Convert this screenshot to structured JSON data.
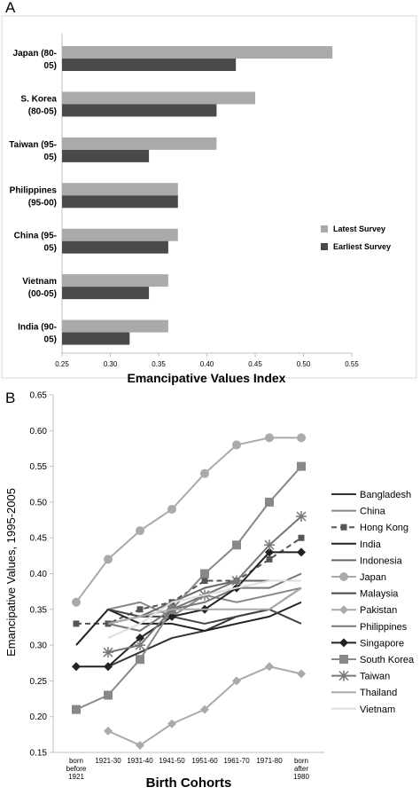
{
  "panels": {
    "a_label": "A",
    "b_label": "B"
  },
  "chart_data": [
    {
      "type": "bar",
      "orientation": "horizontal",
      "title": "",
      "xlabel": "Emancipative Values Index",
      "ylabel": "",
      "xlim": [
        0.25,
        0.55
      ],
      "xticks": [
        "0.25",
        "0.30",
        "0.35",
        "0.40",
        "0.45",
        "0.50",
        "0.55"
      ],
      "categories": [
        [
          "Japan (80-",
          "05)"
        ],
        [
          "S. Korea",
          "(80-05)"
        ],
        [
          "Taiwan (95-",
          "05)"
        ],
        [
          "Philippines",
          "(95-00)"
        ],
        [
          "China (95-",
          "05)"
        ],
        [
          "Vietnam",
          "(00-05)"
        ],
        [
          "India (90-",
          "05)"
        ]
      ],
      "series": [
        {
          "name": "Latest Survey",
          "color": "#aaaaaa",
          "values": [
            0.53,
            0.45,
            0.41,
            0.37,
            0.37,
            0.36,
            0.36
          ]
        },
        {
          "name": "Earliest Survey",
          "color": "#4a4a4a",
          "values": [
            0.43,
            0.41,
            0.34,
            0.37,
            0.36,
            0.34,
            0.32
          ]
        }
      ],
      "legend": "right",
      "grid": false
    },
    {
      "type": "line",
      "title": "",
      "xlabel": "Birth Cohorts",
      "ylabel": "Emancipative Values, 1995-2005",
      "ylim": [
        0.15,
        0.65
      ],
      "yticks": [
        "0.15",
        "0.20",
        "0.25",
        "0.30",
        "0.35",
        "0.40",
        "0.45",
        "0.50",
        "0.55",
        "0.60",
        "0.65"
      ],
      "categories": [
        [
          "born",
          "before",
          "1921"
        ],
        [
          "1921-30"
        ],
        [
          "1931-40"
        ],
        [
          "1941-50"
        ],
        [
          "1951-60"
        ],
        [
          "1961-70"
        ],
        [
          "1971-80"
        ],
        [
          "born",
          "after",
          "1980"
        ]
      ],
      "legend": "right",
      "grid": false,
      "series": [
        {
          "name": "Bangladesh",
          "color": "#333333",
          "marker": "none",
          "dash": false,
          "width": 2,
          "values": [
            null,
            0.27,
            0.29,
            0.31,
            0.32,
            0.34,
            0.35,
            0.38
          ]
        },
        {
          "name": "China",
          "color": "#888888",
          "marker": "none",
          "dash": false,
          "width": 2,
          "values": [
            null,
            0.35,
            0.36,
            0.34,
            0.37,
            0.36,
            0.37,
            0.38
          ]
        },
        {
          "name": "Hong Kong",
          "color": "#555555",
          "marker": "square-small",
          "dash": true,
          "width": 2,
          "values": [
            0.33,
            0.33,
            0.35,
            0.36,
            0.39,
            0.39,
            0.42,
            0.45
          ]
        },
        {
          "name": "India",
          "color": "#222222",
          "marker": "none",
          "dash": false,
          "width": 2,
          "values": [
            0.3,
            0.35,
            0.33,
            0.33,
            0.32,
            0.33,
            0.34,
            0.36
          ]
        },
        {
          "name": "Indonesia",
          "color": "#666666",
          "marker": "none",
          "dash": false,
          "width": 2,
          "values": [
            null,
            0.33,
            0.34,
            0.36,
            0.38,
            0.39,
            0.39,
            0.39
          ]
        },
        {
          "name": "Japan",
          "color": "#aaaaaa",
          "marker": "circle",
          "dash": false,
          "width": 2,
          "values": [
            0.36,
            0.42,
            0.46,
            0.49,
            0.54,
            0.58,
            0.59,
            0.59
          ]
        },
        {
          "name": "Malaysia",
          "color": "#444444",
          "marker": "none",
          "dash": false,
          "width": 2,
          "values": [
            null,
            0.35,
            0.34,
            0.34,
            0.33,
            0.34,
            0.35,
            0.33
          ]
        },
        {
          "name": "Pakistan",
          "color": "#aaaaaa",
          "marker": "diamond",
          "dash": false,
          "width": 2,
          "values": [
            null,
            0.18,
            0.16,
            0.19,
            0.21,
            0.25,
            0.27,
            0.26
          ]
        },
        {
          "name": "Philippines",
          "color": "#777777",
          "marker": "none",
          "dash": false,
          "width": 2,
          "values": [
            null,
            0.33,
            0.32,
            0.35,
            0.36,
            0.38,
            0.38,
            0.4
          ]
        },
        {
          "name": "Singapore",
          "color": "#222222",
          "marker": "diamond",
          "dash": false,
          "width": 2,
          "values": [
            0.27,
            0.27,
            0.31,
            0.34,
            0.35,
            0.38,
            0.43,
            0.43
          ]
        },
        {
          "name": "South Korea",
          "color": "#888888",
          "marker": "square",
          "dash": false,
          "width": 2,
          "values": [
            0.21,
            0.23,
            0.28,
            0.35,
            0.4,
            0.44,
            0.5,
            0.55
          ]
        },
        {
          "name": "Taiwan",
          "color": "#777777",
          "marker": "star",
          "dash": false,
          "width": 2,
          "values": [
            null,
            0.29,
            0.3,
            0.35,
            0.37,
            0.39,
            0.44,
            0.48
          ]
        },
        {
          "name": "Thailand",
          "color": "#aaaaaa",
          "marker": "none",
          "dash": false,
          "width": 2,
          "values": [
            null,
            0.33,
            0.34,
            0.35,
            0.35,
            0.35,
            0.35,
            0.38
          ]
        },
        {
          "name": "Vietnam",
          "color": "#dddddd",
          "marker": "none",
          "dash": false,
          "width": 2,
          "values": [
            null,
            0.31,
            0.33,
            0.36,
            0.37,
            0.38,
            0.39,
            0.39
          ]
        }
      ]
    }
  ]
}
